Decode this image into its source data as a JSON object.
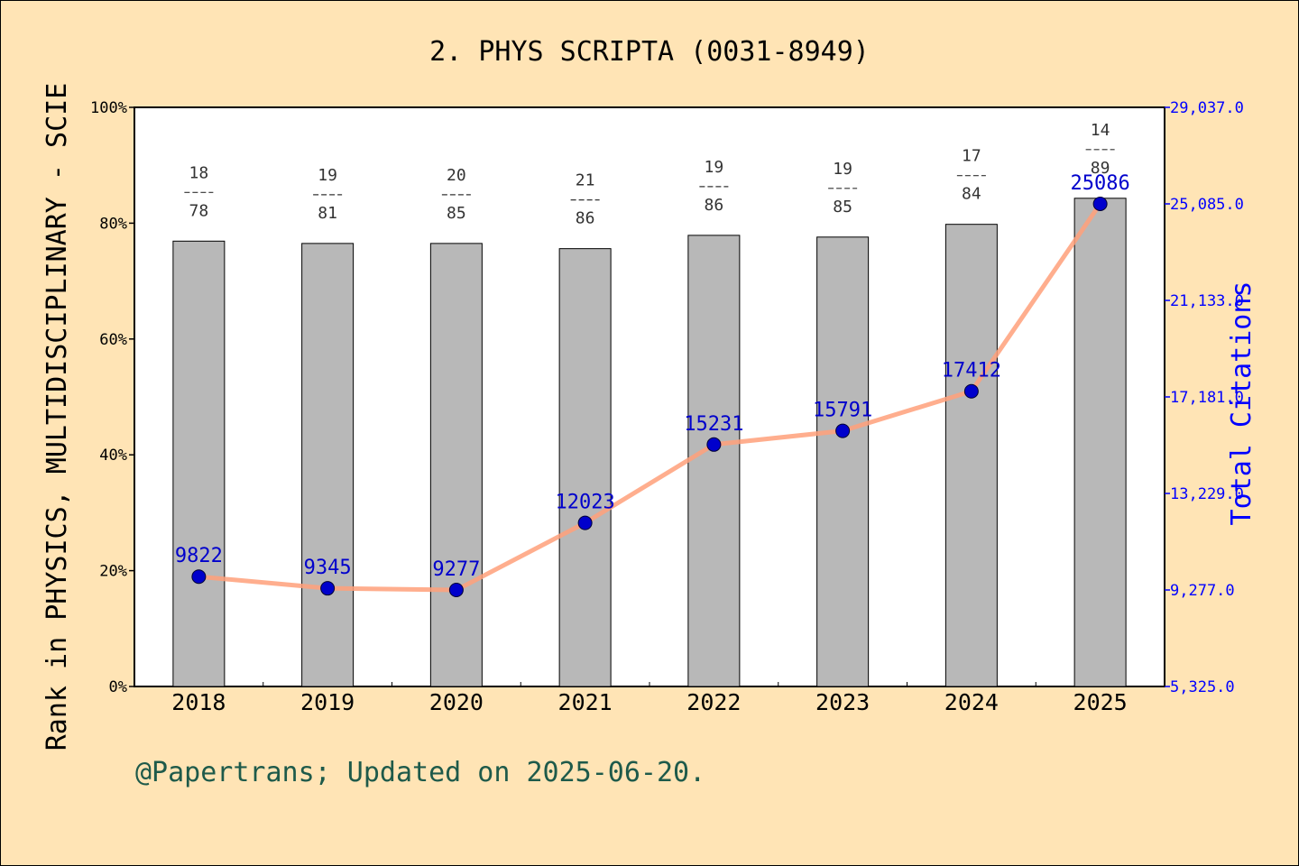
{
  "chart_data": {
    "type": "bar",
    "title": "2. PHYS SCRIPTA (0031-8949)",
    "ylabel": "Rank in PHYSICS, MULTIDISCIPLINARY - SCIE",
    "y2label": "Total Citations",
    "categories": [
      "2018",
      "2019",
      "2020",
      "2021",
      "2022",
      "2023",
      "2024",
      "2025"
    ],
    "ylim": [
      0,
      100
    ],
    "yticks": [
      "0%",
      "20%",
      "40%",
      "60%",
      "80%",
      "100%"
    ],
    "y2lim": [
      5325.0,
      29037.0
    ],
    "y2ticks": [
      "5,325.0",
      "9,277.0",
      "13,229.0",
      "17,181.0",
      "21,133.0",
      "25,085.0",
      "29,037.0"
    ],
    "series": [
      {
        "type": "bar",
        "values": [
          76.9,
          76.5,
          76.5,
          75.6,
          77.9,
          77.6,
          79.8,
          84.3
        ],
        "rank": [
          "18",
          "19",
          "20",
          "21",
          "19",
          "19",
          "17",
          "14"
        ],
        "total": [
          "78",
          "81",
          "85",
          "86",
          "86",
          "85",
          "84",
          "89"
        ],
        "color": "#B8B8B8"
      },
      {
        "type": "line",
        "axis": "right",
        "values": [
          9822,
          9345,
          9277,
          12023,
          15231,
          15791,
          17412,
          25086
        ],
        "labels": [
          "9822",
          "9345",
          "9277",
          "12023",
          "15231",
          "15791",
          "17412",
          "25086"
        ],
        "color": "#FFA07A",
        "marker_color": "#0000CC"
      }
    ],
    "grid": false,
    "legend": "none"
  },
  "footer": "@Papertrans; Updated on 2025-06-20."
}
